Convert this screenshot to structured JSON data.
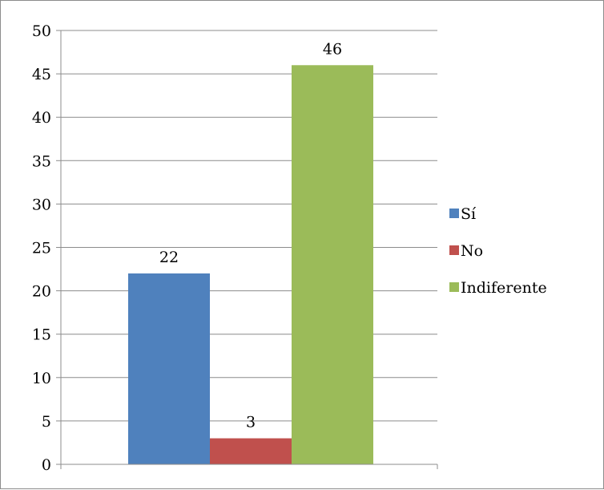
{
  "chart_data": {
    "type": "bar",
    "categories": [
      ""
    ],
    "series": [
      {
        "name": "Sí",
        "values": [
          22
        ],
        "color": "#4f81bd"
      },
      {
        "name": "No",
        "values": [
          3
        ],
        "color": "#c0504d"
      },
      {
        "name": "Indiferente",
        "values": [
          46
        ],
        "color": "#9bbb59"
      }
    ],
    "title": "",
    "xlabel": "",
    "ylabel": "",
    "ylim": [
      0,
      50
    ],
    "yticks": [
      0,
      5,
      10,
      15,
      20,
      25,
      30,
      35,
      40,
      45,
      50
    ],
    "grid": true,
    "data_labels": true,
    "legend": "right"
  }
}
